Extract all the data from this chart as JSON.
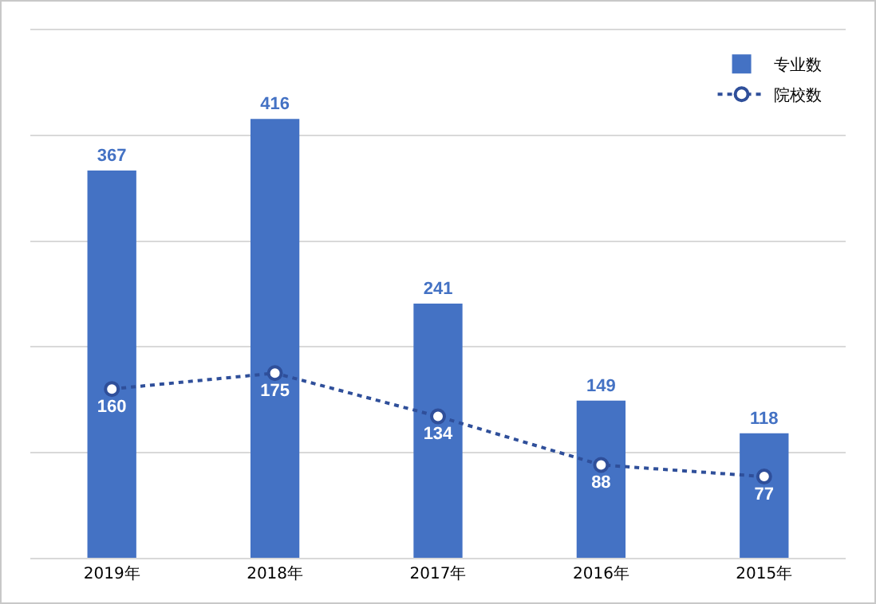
{
  "chart_data": {
    "type": "bar",
    "categories": [
      "2019年",
      "2018年",
      "2017年",
      "2016年",
      "2015年"
    ],
    "series": [
      {
        "name": "专业数",
        "color": "#4472c4",
        "values": [
          367,
          416,
          241,
          149,
          118
        ]
      },
      {
        "name": "院校数",
        "type": "line",
        "color": "#2f4f9a",
        "values": [
          160,
          175,
          134,
          88,
          77
        ]
      }
    ],
    "ylim": [
      0,
      500
    ],
    "yticks": [
      {
        "value": 0,
        "label": null
      },
      {
        "value": 100,
        "label": null
      },
      {
        "value": 200,
        "label": null
      },
      {
        "value": 300,
        "label": null
      },
      {
        "value": 400,
        "label": null
      },
      {
        "value": 500,
        "label": null
      }
    ],
    "tick_labels": "x",
    "grid": "y",
    "legend": "top right",
    "data_labels": true,
    "marker": "circle",
    "line_style": "dotted"
  }
}
